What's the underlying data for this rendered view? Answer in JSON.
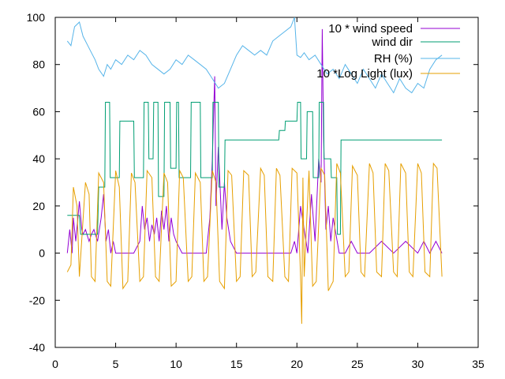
{
  "chart_data": {
    "type": "line",
    "xlim": [
      0,
      35
    ],
    "ylim": [
      -40,
      100
    ],
    "x_ticks": [
      "0",
      "5",
      "10",
      "15",
      "20",
      "25",
      "30",
      "35"
    ],
    "y_ticks": [
      "-40",
      "-20",
      "0",
      "20",
      "40",
      "60",
      "80",
      "100"
    ],
    "grid": false,
    "legend_position": "top-right",
    "series": [
      {
        "name": "10 * wind speed",
        "color": "#9400d3",
        "x": [
          1.0,
          1.2,
          1.4,
          1.5,
          1.7,
          2.0,
          2.2,
          2.3,
          2.5,
          2.8,
          3.0,
          3.2,
          3.5,
          3.8,
          4.0,
          4.2,
          4.4,
          4.6,
          4.8,
          5.0,
          5.5,
          6.0,
          6.5,
          7.0,
          7.2,
          7.4,
          7.6,
          7.8,
          8.0,
          8.2,
          8.4,
          8.6,
          8.8,
          9.0,
          9.2,
          9.4,
          9.6,
          9.8,
          10.0,
          10.5,
          11.0,
          11.5,
          12.0,
          12.5,
          12.8,
          13.0,
          13.2,
          13.3,
          13.5,
          13.8,
          14.0,
          14.2,
          14.5,
          15.0,
          17.0,
          19.0,
          19.5,
          19.8,
          20.0,
          20.3,
          20.6,
          20.9,
          21.2,
          21.5,
          21.8,
          22.0,
          22.1,
          22.2,
          22.4,
          22.6,
          22.8,
          23.0,
          23.5,
          24.0,
          24.5,
          25.0,
          26.0,
          27.0,
          28.0,
          29.0,
          30.0,
          30.5,
          31.0,
          31.5,
          32.0
        ],
        "values": [
          0,
          10,
          0,
          15,
          5,
          22,
          10,
          8,
          10,
          5,
          8,
          10,
          5,
          15,
          25,
          5,
          10,
          0,
          5,
          0,
          0,
          0,
          0,
          5,
          20,
          10,
          15,
          5,
          12,
          8,
          15,
          5,
          18,
          10,
          20,
          5,
          15,
          8,
          5,
          0,
          0,
          0,
          0,
          0,
          15,
          40,
          75,
          20,
          45,
          10,
          30,
          15,
          5,
          0,
          0,
          0,
          0,
          5,
          0,
          20,
          10,
          0,
          25,
          5,
          40,
          30,
          95,
          50,
          10,
          20,
          5,
          15,
          0,
          0,
          5,
          0,
          0,
          5,
          0,
          5,
          0,
          5,
          0,
          5,
          0
        ]
      },
      {
        "name": "wind dir",
        "color": "#009e73",
        "x": [
          1.0,
          2.0,
          2.1,
          3.5,
          3.6,
          4.1,
          4.15,
          4.5,
          4.55,
          5.3,
          5.35,
          6.5,
          6.55,
          7.3,
          7.35,
          7.7,
          7.75,
          8.1,
          8.15,
          8.5,
          8.55,
          9.0,
          9.05,
          9.5,
          9.55,
          10.0,
          10.05,
          10.2,
          10.25,
          11.2,
          11.25,
          12.0,
          12.05,
          13.0,
          13.05,
          13.5,
          13.55,
          14.0,
          14.05,
          14.5,
          14.55,
          18.5,
          18.55,
          19.0,
          19.05,
          20.0,
          20.05,
          20.3,
          20.35,
          20.8,
          20.85,
          21.3,
          21.35,
          21.8,
          21.85,
          22.2,
          22.25,
          22.8,
          22.85,
          23.3,
          23.35,
          23.6,
          23.65,
          32.0
        ],
        "values": [
          16,
          16,
          8,
          8,
          28,
          28,
          64,
          64,
          32,
          32,
          56,
          56,
          32,
          32,
          64,
          64,
          40,
          40,
          64,
          64,
          24,
          24,
          64,
          64,
          36,
          36,
          64,
          64,
          32,
          32,
          64,
          64,
          32,
          32,
          64,
          64,
          28,
          28,
          48,
          48,
          48,
          48,
          52,
          52,
          56,
          56,
          64,
          64,
          40,
          40,
          60,
          60,
          32,
          32,
          64,
          64,
          40,
          40,
          32,
          32,
          8,
          8,
          48,
          48
        ]
      },
      {
        "name": "RH (%)",
        "color": "#56b4e9",
        "x": [
          1.0,
          1.3,
          1.6,
          2.0,
          2.3,
          2.7,
          3.0,
          3.3,
          3.6,
          4.0,
          4.3,
          4.6,
          5.0,
          5.5,
          6.0,
          6.5,
          7.0,
          7.5,
          8.0,
          8.5,
          9.0,
          9.5,
          10.0,
          10.5,
          11.0,
          11.5,
          12.0,
          12.5,
          13.0,
          13.5,
          14.0,
          14.5,
          15.0,
          15.5,
          16.0,
          16.5,
          17.0,
          17.5,
          18.0,
          18.5,
          19.0,
          19.5,
          19.8,
          20.0,
          20.3,
          20.6,
          21.0,
          21.5,
          22.0,
          22.5,
          23.0,
          23.5,
          24.0,
          24.5,
          25.0,
          25.5,
          26.0,
          26.5,
          27.0,
          27.5,
          28.0,
          28.5,
          29.0,
          29.5,
          30.0,
          30.5,
          31.0,
          31.5,
          32.0
        ],
        "values": [
          90,
          88,
          96,
          98,
          92,
          88,
          85,
          82,
          78,
          75,
          80,
          78,
          82,
          80,
          84,
          82,
          86,
          84,
          80,
          78,
          76,
          78,
          82,
          80,
          84,
          82,
          80,
          78,
          74,
          70,
          72,
          78,
          84,
          88,
          86,
          84,
          86,
          84,
          90,
          92,
          94,
          96,
          100,
          84,
          83,
          85,
          82,
          84,
          80,
          76,
          78,
          74,
          80,
          76,
          72,
          78,
          74,
          70,
          76,
          72,
          68,
          74,
          70,
          68,
          72,
          70,
          78,
          82,
          84
        ]
      },
      {
        "name": "10 *Log Light (lux)",
        "color": "#e69f00",
        "x": [
          1.0,
          1.3,
          1.5,
          1.8,
          2.0,
          2.5,
          2.8,
          3.0,
          3.3,
          3.6,
          4.0,
          4.3,
          4.6,
          5.0,
          5.3,
          5.6,
          6.0,
          6.3,
          6.6,
          7.0,
          7.3,
          7.6,
          8.0,
          8.3,
          8.6,
          9.0,
          9.3,
          9.6,
          10.0,
          10.3,
          10.6,
          11.0,
          11.3,
          11.6,
          12.0,
          12.3,
          12.6,
          13.0,
          13.3,
          13.6,
          14.0,
          14.3,
          14.6,
          15.0,
          15.3,
          15.6,
          16.0,
          16.3,
          16.6,
          17.0,
          17.3,
          17.6,
          18.0,
          18.3,
          18.6,
          19.0,
          19.3,
          19.6,
          20.0,
          20.3,
          20.4,
          20.5,
          20.6,
          21.0,
          21.3,
          21.6,
          22.0,
          22.3,
          22.6,
          23.0,
          23.3,
          23.6,
          24.0,
          24.3,
          24.6,
          25.0,
          25.3,
          25.6,
          26.0,
          26.3,
          26.6,
          27.0,
          27.3,
          27.6,
          28.0,
          28.3,
          28.6,
          29.0,
          29.3,
          29.6,
          30.0,
          30.3,
          30.6,
          31.0,
          31.3,
          31.6,
          32.0
        ],
        "values": [
          -8,
          -5,
          28,
          20,
          -10,
          30,
          25,
          -10,
          -12,
          34,
          30,
          -12,
          -14,
          35,
          28,
          -15,
          -12,
          34,
          30,
          -12,
          -10,
          35,
          32,
          -10,
          -12,
          34,
          30,
          -14,
          -12,
          35,
          32,
          -12,
          -10,
          34,
          30,
          -12,
          -10,
          35,
          30,
          -12,
          -15,
          35,
          33,
          -12,
          -10,
          35,
          33,
          -10,
          -8,
          36,
          33,
          -10,
          -12,
          36,
          33,
          -10,
          -12,
          36,
          34,
          -10,
          -30,
          32,
          -10,
          35,
          -14,
          -12,
          36,
          33,
          -16,
          -12,
          38,
          34,
          -10,
          -8,
          37,
          33,
          -8,
          -10,
          38,
          34,
          -8,
          -10,
          38,
          35,
          -8,
          -10,
          38,
          34,
          -8,
          -10,
          38,
          34,
          -8,
          -10,
          38,
          36,
          -10
        ]
      }
    ]
  }
}
